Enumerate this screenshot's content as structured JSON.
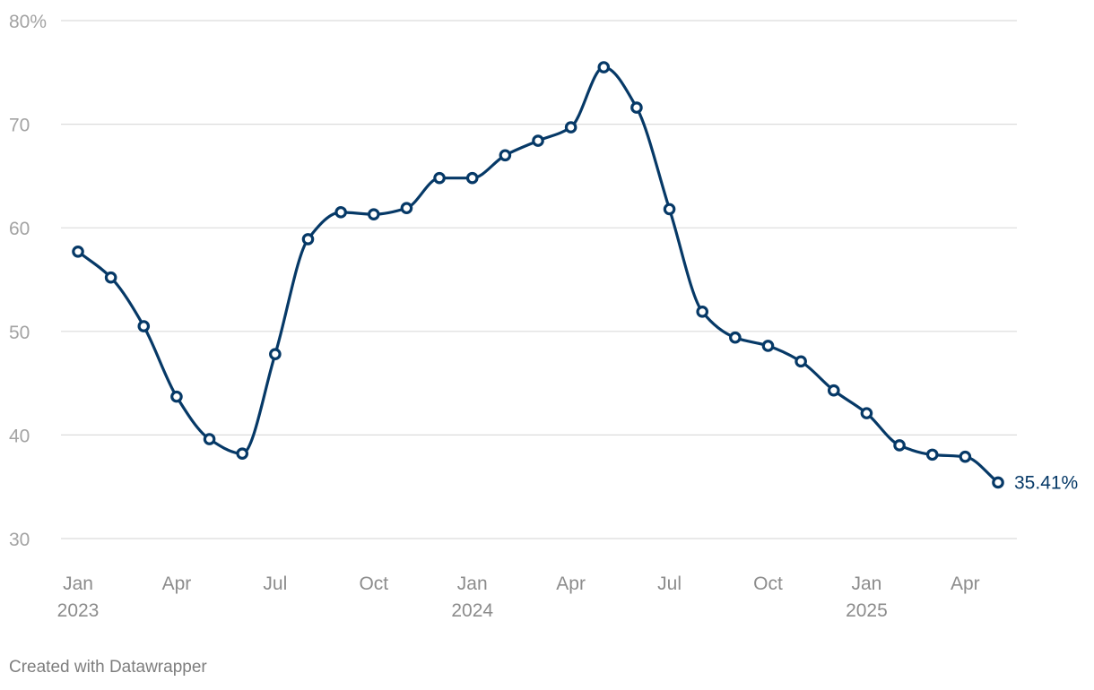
{
  "chart_data": {
    "type": "line",
    "x": [
      "2023-01",
      "2023-02",
      "2023-03",
      "2023-04",
      "2023-05",
      "2023-06",
      "2023-07",
      "2023-08",
      "2023-09",
      "2023-10",
      "2023-11",
      "2023-12",
      "2024-01",
      "2024-02",
      "2024-03",
      "2024-04",
      "2024-05",
      "2024-06",
      "2024-07",
      "2024-08",
      "2024-09",
      "2024-10",
      "2024-11",
      "2024-12",
      "2025-01",
      "2025-02",
      "2025-03",
      "2025-04",
      "2025-05"
    ],
    "series": [
      {
        "values": [
          57.7,
          55.2,
          50.5,
          43.7,
          39.6,
          38.2,
          47.8,
          58.9,
          61.5,
          61.3,
          61.9,
          64.8,
          64.8,
          67.0,
          68.4,
          69.7,
          75.5,
          71.6,
          61.8,
          51.9,
          49.4,
          48.6,
          47.1,
          44.3,
          42.1,
          39.0,
          38.1,
          37.9,
          35.41
        ]
      }
    ],
    "end_label": "35.41%",
    "ylim": [
      30,
      80
    ],
    "y_ticks": [
      30,
      40,
      50,
      60,
      70,
      80
    ],
    "y_tick_labels": [
      "30",
      "40",
      "50",
      "60",
      "70",
      "80%"
    ],
    "x_ticks": [
      {
        "date": "2023-01",
        "label": "Jan",
        "year": "2023"
      },
      {
        "date": "2023-04",
        "label": "Apr",
        "year": ""
      },
      {
        "date": "2023-07",
        "label": "Jul",
        "year": ""
      },
      {
        "date": "2023-10",
        "label": "Oct",
        "year": ""
      },
      {
        "date": "2024-01",
        "label": "Jan",
        "year": "2024"
      },
      {
        "date": "2024-04",
        "label": "Apr",
        "year": ""
      },
      {
        "date": "2024-07",
        "label": "Jul",
        "year": ""
      },
      {
        "date": "2024-10",
        "label": "Oct",
        "year": ""
      },
      {
        "date": "2025-01",
        "label": "Jan",
        "year": "2025"
      },
      {
        "date": "2025-04",
        "label": "Apr",
        "year": ""
      }
    ],
    "grid": true,
    "line_color": "#063967"
  },
  "credit": "Created with Datawrapper"
}
